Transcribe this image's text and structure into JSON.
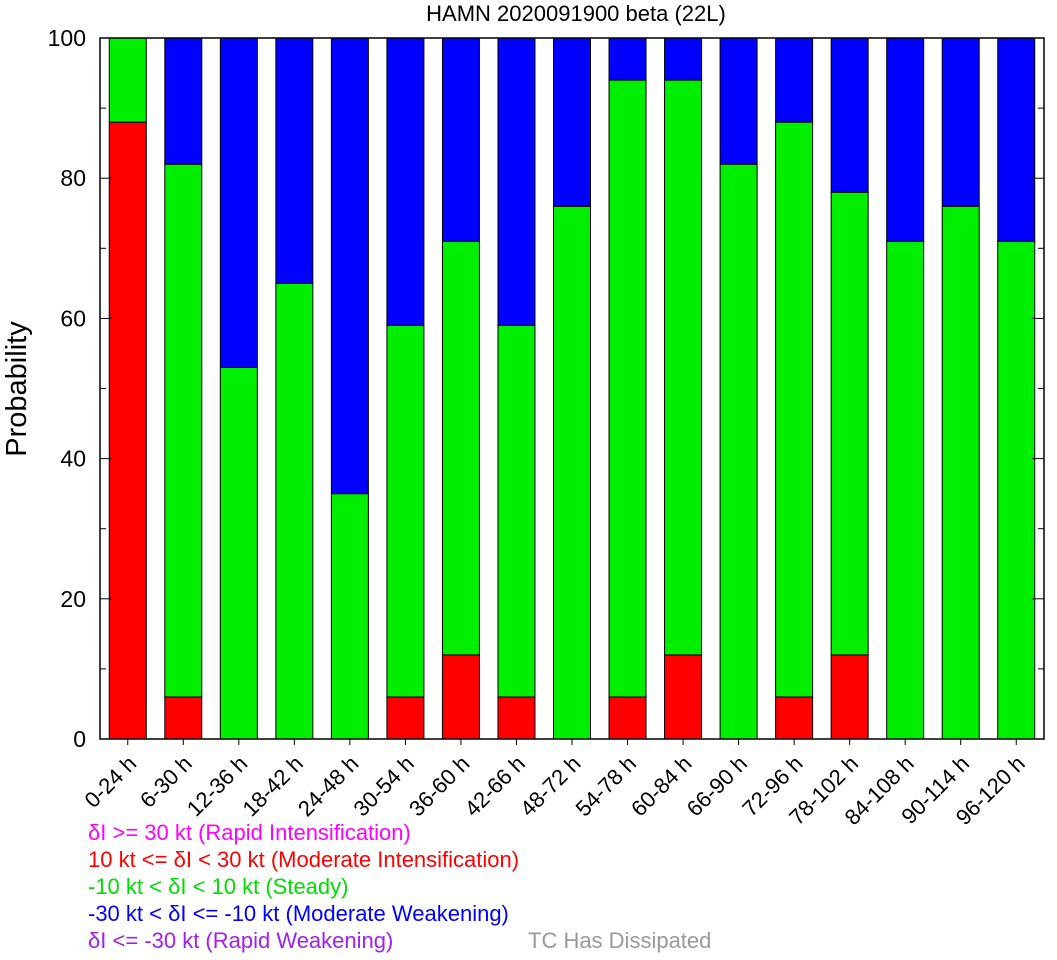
{
  "chart_data": {
    "type": "bar",
    "stacked": true,
    "title": "HAMN 2020091900 beta (22L)",
    "xlabel": "",
    "ylabel": "Probability",
    "ylim": [
      0,
      100
    ],
    "yticks": [
      0,
      20,
      40,
      60,
      80,
      100
    ],
    "grid": false,
    "categories": [
      "0-24 h",
      "6-30 h",
      "12-36 h",
      "18-42 h",
      "24-48 h",
      "30-54 h",
      "36-60 h",
      "42-66 h",
      "48-72 h",
      "54-78 h",
      "60-84 h",
      "66-90 h",
      "72-96 h",
      "78-102 h",
      "84-108 h",
      "90-114 h",
      "96-120 h"
    ],
    "series": [
      {
        "name": "δI >= 30 kt (Rapid Intensification)",
        "color": "#ff00ff",
        "values": [
          0,
          0,
          0,
          0,
          0,
          0,
          0,
          0,
          0,
          0,
          0,
          0,
          0,
          0,
          0,
          0,
          0
        ]
      },
      {
        "name": "10 kt <= δI < 30 kt (Moderate Intensification)",
        "color": "#ff0000",
        "values": [
          88,
          6,
          0,
          0,
          0,
          6,
          12,
          6,
          0,
          6,
          12,
          0,
          6,
          12,
          0,
          0,
          0
        ]
      },
      {
        "name": "-10 kt < δI < 10 kt (Steady)",
        "color": "#00ee00",
        "values": [
          12,
          76,
          53,
          65,
          35,
          53,
          59,
          53,
          76,
          88,
          82,
          82,
          82,
          66,
          71,
          76,
          71
        ]
      },
      {
        "name": "-30 kt < δI <= -10 kt (Moderate Weakening)",
        "color": "#0000ff",
        "values": [
          0,
          18,
          47,
          35,
          65,
          41,
          29,
          41,
          24,
          6,
          6,
          18,
          12,
          22,
          29,
          24,
          29
        ]
      },
      {
        "name": "δI <= -30 kt (Rapid Weakening)",
        "color": "#a020f0",
        "values": [
          0,
          0,
          0,
          0,
          0,
          0,
          0,
          0,
          0,
          0,
          0,
          0,
          0,
          0,
          0,
          0,
          0
        ]
      },
      {
        "name": "TC Has Dissipated",
        "color": "#999999",
        "values": [
          0,
          0,
          0,
          0,
          0,
          0,
          0,
          0,
          0,
          0,
          0,
          0,
          0,
          0,
          0,
          0,
          0
        ]
      }
    ]
  }
}
